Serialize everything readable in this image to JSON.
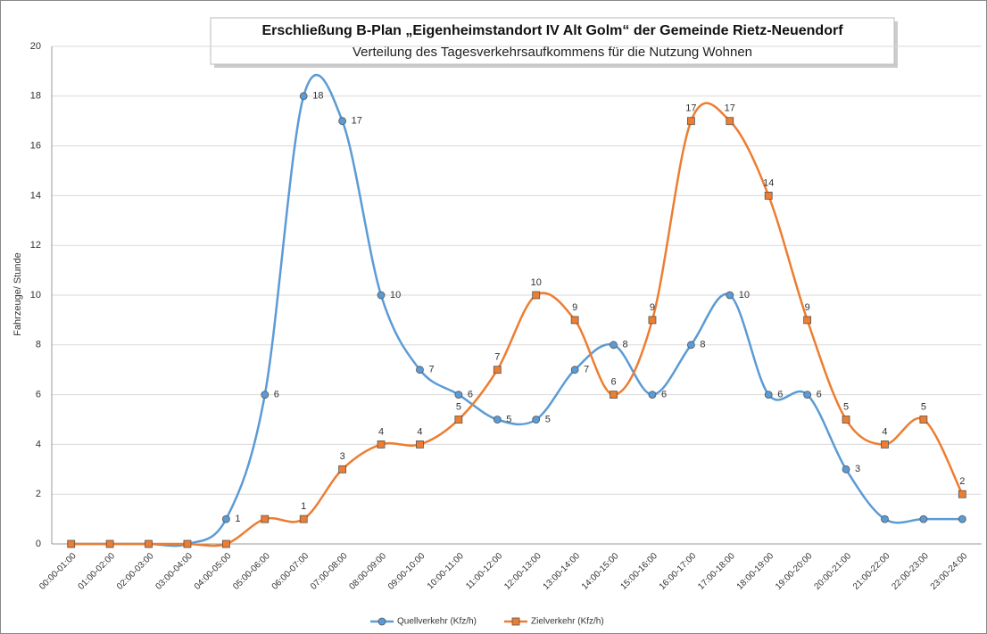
{
  "chart_data": {
    "type": "line",
    "title": "Erschließung B-Plan „Eigenheimstandort IV Alt Golm“ der Gemeinde Rietz-Neuendorf",
    "subtitle": "Verteilung des Tagesverkehrsaufkommens für die Nutzung Wohnen",
    "y_label": "Fahrzeuge/ Stunde",
    "categories": [
      "00:00-01:00",
      "01:00-02:00",
      "02:00-03:00",
      "03:00-04:00",
      "04:00-05:00",
      "05:00-06:00",
      "06:00-07:00",
      "07:00-08:00",
      "08:00-09:00",
      "09:00-10:00",
      "10:00-11:00",
      "11:00-12:00",
      "12:00-13:00",
      "13:00-14:00",
      "14:00-15:00",
      "15:00-16:00",
      "16:00-17:00",
      "17:00-18:00",
      "18:00-19:00",
      "19:00-20:00",
      "20:00-21:00",
      "21:00-22:00",
      "22:00-23:00",
      "23:00-24:00"
    ],
    "series": [
      {
        "name": "Quellverkehr (Kfz/h)",
        "color": "#5b9bd5",
        "marker": "circle",
        "values": [
          0,
          0,
          0,
          0,
          1,
          6,
          18,
          17,
          10,
          7,
          6,
          5,
          5,
          7,
          8,
          6,
          8,
          10,
          6,
          6,
          3,
          1,
          1,
          1
        ],
        "value_labels": [
          null,
          null,
          null,
          null,
          "1",
          "6",
          "18",
          "17",
          "10",
          "7",
          "6",
          "5",
          "5",
          "7",
          "8",
          "6",
          "8",
          "10",
          "6",
          "6",
          "3",
          null,
          null,
          null
        ]
      },
      {
        "name": "Zielverkehr (Kfz/h)",
        "color": "#ed7d31",
        "marker": "square",
        "values": [
          0,
          0,
          0,
          0,
          0,
          1,
          1,
          3,
          4,
          4,
          5,
          7,
          10,
          9,
          6,
          9,
          17,
          17,
          14,
          9,
          5,
          4,
          5,
          2
        ],
        "value_labels": [
          null,
          null,
          null,
          null,
          null,
          null,
          "1",
          "3",
          "4",
          "4",
          "5",
          "7",
          "10",
          "9",
          "6",
          "9",
          "17",
          "17",
          "14",
          "9",
          "5",
          "4",
          "5",
          "2"
        ]
      }
    ],
    "ylim": [
      0,
      20
    ],
    "yticks": [
      0,
      2,
      4,
      6,
      8,
      10,
      12,
      14,
      16,
      18,
      20
    ],
    "grid": true,
    "legend": "bottom"
  }
}
